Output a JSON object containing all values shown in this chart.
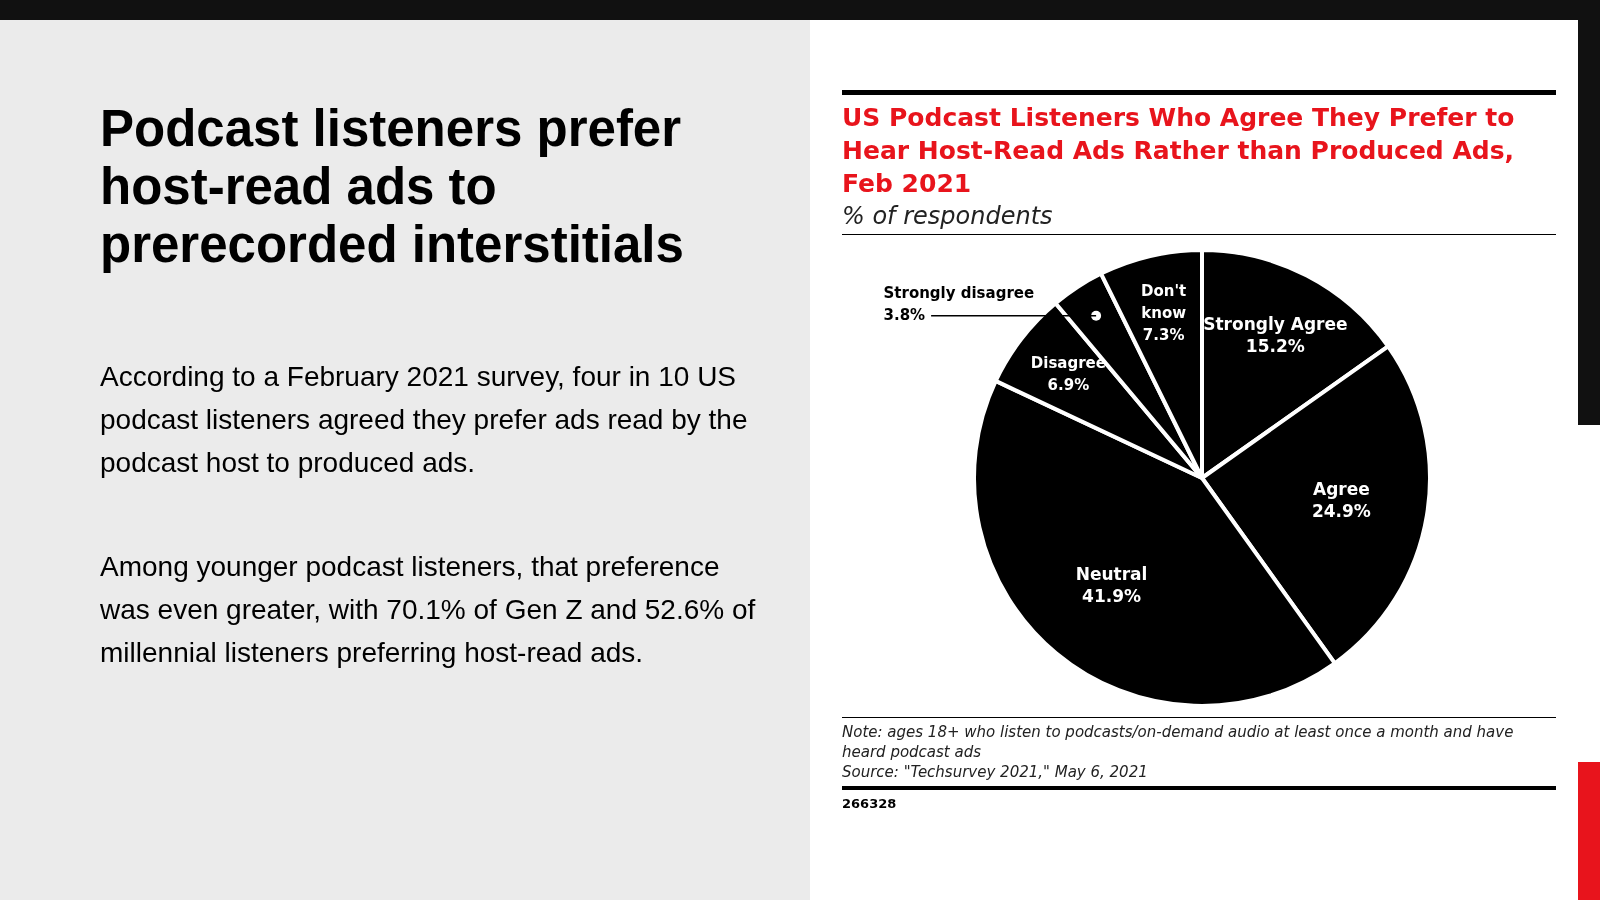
{
  "chart_data": {
    "type": "pie",
    "title": "US Podcast Listeners Who Agree They Prefer to Hear Host-Read Ads Rather than Produced Ads, Feb 2021",
    "subtitle": "% of respondents",
    "categories": [
      "Strongly Agree",
      "Agree",
      "Neutral",
      "Disagree",
      "Strongly disagree",
      "Don't know"
    ],
    "values": [
      15.2,
      24.9,
      41.9,
      6.9,
      3.8,
      7.3
    ],
    "colors": [
      "#000000",
      "#000000",
      "#000000",
      "#000000",
      "#000000",
      "#000000"
    ],
    "value_labels": [
      "15.2%",
      "24.9%",
      "41.9%",
      "6.9%",
      "3.8%",
      "7.3%"
    ],
    "legend": false,
    "annotations": [
      "Podcast listeners prefer host-read ads to prerecorded interstitials",
      "According to a February 2021 survey, four in 10 US podcast listeners agreed they prefer ads read by the podcast host to produced ads.",
      "Among younger podcast listeners, that preference was even greater, with 70.1% of Gen Z and 52.6% of millennial listeners preferring host-read ads.",
      "Note: ages 18+ who listen to podcasts/on-demand audio at least once a month and have heard podcast ads",
      "Source: \"Techsurvey 2021,\" May 6, 2021",
      "266328"
    ]
  }
}
